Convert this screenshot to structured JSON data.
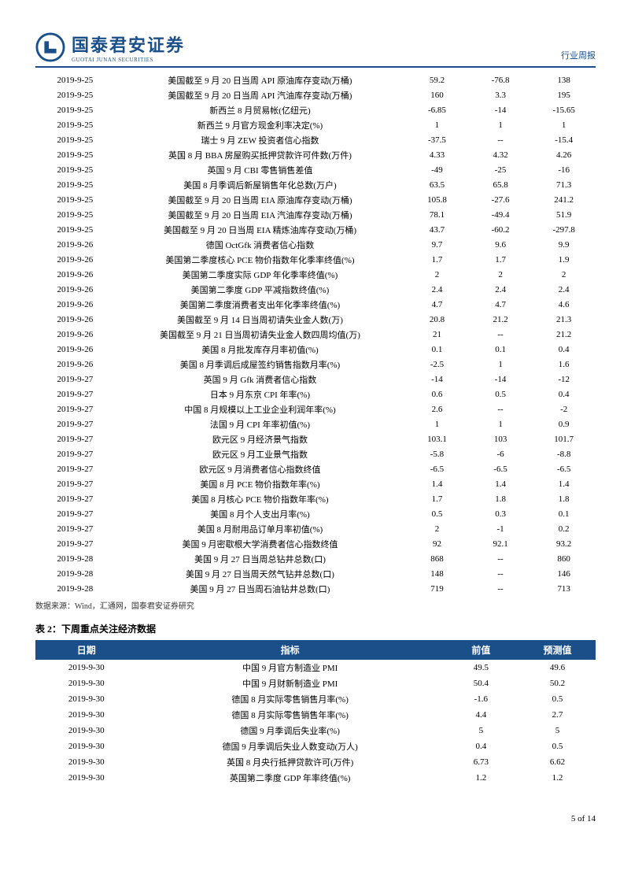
{
  "header": {
    "logo_cn": "国泰君安证券",
    "logo_en": "GUOTAI JUNAN SECURITIES",
    "report_type": "行业周报"
  },
  "table1": {
    "col_widths": [
      "90px",
      "330px",
      "72px",
      "72px",
      "72px"
    ],
    "rows": [
      [
        "2019-9-25",
        "美国截至 9 月 20 日当周 API 原油库存变动(万桶)",
        "59.2",
        "-76.8",
        "138"
      ],
      [
        "2019-9-25",
        "美国截至 9 月 20 日当周 API 汽油库存变动(万桶)",
        "160",
        "3.3",
        "195"
      ],
      [
        "2019-9-25",
        "新西兰 8 月贸易帐(亿纽元)",
        "-6.85",
        "-14",
        "-15.65"
      ],
      [
        "2019-9-25",
        "新西兰 9 月官方现金利率决定(%)",
        "1",
        "1",
        "1"
      ],
      [
        "2019-9-25",
        "瑞士 9 月 ZEW 投资者信心指数",
        "-37.5",
        "--",
        "-15.4"
      ],
      [
        "2019-9-25",
        "英国 8 月 BBA 房屋购买抵押贷款许可件数(万件)",
        "4.33",
        "4.32",
        "4.26"
      ],
      [
        "2019-9-25",
        "英国 9 月 CBI 零售销售差值",
        "-49",
        "-25",
        "-16"
      ],
      [
        "2019-9-25",
        "美国 8 月季调后新屋销售年化总数(万户)",
        "63.5",
        "65.8",
        "71.3"
      ],
      [
        "2019-9-25",
        "美国截至 9 月 20 日当周 EIA 原油库存变动(万桶)",
        "105.8",
        "-27.6",
        "241.2"
      ],
      [
        "2019-9-25",
        "美国截至 9 月 20 日当周 EIA 汽油库存变动(万桶)",
        "78.1",
        "-49.4",
        "51.9"
      ],
      [
        "2019-9-25",
        "美国截至 9 月 20 日当周 EIA 精炼油库存变动(万桶)",
        "43.7",
        "-60.2",
        "-297.8"
      ],
      [
        "2019-9-26",
        "德国 OctGfk 消费者信心指数",
        "9.7",
        "9.6",
        "9.9"
      ],
      [
        "2019-9-26",
        "美国第二季度核心 PCE 物价指数年化季率终值(%)",
        "1.7",
        "1.7",
        "1.9"
      ],
      [
        "2019-9-26",
        "美国第二季度实际 GDP 年化季率终值(%)",
        "2",
        "2",
        "2"
      ],
      [
        "2019-9-26",
        "美国第二季度 GDP 平减指数终值(%)",
        "2.4",
        "2.4",
        "2.4"
      ],
      [
        "2019-9-26",
        "美国第二季度消费者支出年化季率终值(%)",
        "4.7",
        "4.7",
        "4.6"
      ],
      [
        "2019-9-26",
        "美国截至 9 月 14 日当周初请失业金人数(万)",
        "20.8",
        "21.2",
        "21.3"
      ],
      [
        "2019-9-26",
        "美国截至 9 月 21 日当周初请失业金人数四周均值(万)",
        "21",
        "--",
        "21.2"
      ],
      [
        "2019-9-26",
        "美国 8 月批发库存月率初值(%)",
        "0.1",
        "0.1",
        "0.4"
      ],
      [
        "2019-9-26",
        "美国 8 月季调后成屋签约销售指数月率(%)",
        "-2.5",
        "1",
        "1.6"
      ],
      [
        "2019-9-27",
        "英国 9 月 Gfk 消费者信心指数",
        "-14",
        "-14",
        "-12"
      ],
      [
        "2019-9-27",
        "日本 9 月东京 CPI 年率(%)",
        "0.6",
        "0.5",
        "0.4"
      ],
      [
        "2019-9-27",
        "中国 8 月规模以上工业企业利润年率(%)",
        "2.6",
        "--",
        "-2"
      ],
      [
        "2019-9-27",
        "法国 9 月 CPI 年率初值(%)",
        "1",
        "1",
        "0.9"
      ],
      [
        "2019-9-27",
        "欧元区 9 月经济景气指数",
        "103.1",
        "103",
        "101.7"
      ],
      [
        "2019-9-27",
        "欧元区 9 月工业景气指数",
        "-5.8",
        "-6",
        "-8.8"
      ],
      [
        "2019-9-27",
        "欧元区 9 月消费者信心指数终值",
        "-6.5",
        "-6.5",
        "-6.5"
      ],
      [
        "2019-9-27",
        "美国 8 月 PCE 物价指数年率(%)",
        "1.4",
        "1.4",
        "1.4"
      ],
      [
        "2019-9-27",
        "美国 8 月核心 PCE 物价指数年率(%)",
        "1.7",
        "1.8",
        "1.8"
      ],
      [
        "2019-9-27",
        "美国 8 月个人支出月率(%)",
        "0.5",
        "0.3",
        "0.1"
      ],
      [
        "2019-9-27",
        "美国 8 月耐用品订单月率初值(%)",
        "2",
        "-1",
        "0.2"
      ],
      [
        "2019-9-27",
        "美国 9 月密歇根大学消费者信心指数终值",
        "92",
        "92.1",
        "93.2"
      ],
      [
        "2019-9-28",
        "美国 9 月 27 日当周总钻井总数(口)",
        "868",
        "--",
        "860"
      ],
      [
        "2019-9-28",
        "美国 9 月 27 日当周天然气钻井总数(口)",
        "148",
        "--",
        "146"
      ],
      [
        "2019-9-28",
        "美国 9 月 27 日当周石油钻井总数(口)",
        "719",
        "--",
        "713"
      ]
    ]
  },
  "source_note": "数据来源：Wind，汇通网，国泰君安证券研究",
  "table2_title": "表 2：下周重点关注经济数据",
  "table2": {
    "headers": [
      "日期",
      "指标",
      "前值",
      "预测值"
    ],
    "rows": [
      [
        "2019-9-30",
        "中国 9 月官方制造业 PMI",
        "49.5",
        "49.6"
      ],
      [
        "2019-9-30",
        "中国 9 月财新制造业 PMI",
        "50.4",
        "50.2"
      ],
      [
        "2019-9-30",
        "德国 8 月实际零售销售月率(%)",
        "-1.6",
        "0.5"
      ],
      [
        "2019-9-30",
        "德国 8 月实际零售销售年率(%)",
        "4.4",
        "2.7"
      ],
      [
        "2019-9-30",
        "德国 9 月季调后失业率(%)",
        "5",
        "5"
      ],
      [
        "2019-9-30",
        "德国 9 月季调后失业人数变动(万人)",
        "0.4",
        "0.5"
      ],
      [
        "2019-9-30",
        "英国 8 月央行抵押贷款许可(万件)",
        "6.73",
        "6.62"
      ],
      [
        "2019-9-30",
        "英国第二季度 GDP 年率终值(%)",
        "1.2",
        "1.2"
      ]
    ]
  },
  "footer": "5 of 14",
  "colors": {
    "accent": "#1a4f8a",
    "bg": "#ffffff",
    "text": "#000000"
  }
}
